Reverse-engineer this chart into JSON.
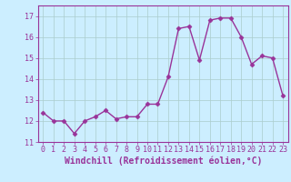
{
  "x": [
    0,
    1,
    2,
    3,
    4,
    5,
    6,
    7,
    8,
    9,
    10,
    11,
    12,
    13,
    14,
    15,
    16,
    17,
    18,
    19,
    20,
    21,
    22,
    23
  ],
  "y": [
    12.4,
    12.0,
    12.0,
    11.4,
    12.0,
    12.2,
    12.5,
    12.1,
    12.2,
    12.2,
    12.8,
    12.8,
    14.1,
    16.4,
    16.5,
    14.9,
    16.8,
    16.9,
    16.9,
    16.0,
    14.7,
    15.1,
    15.0,
    13.2
  ],
  "line_color": "#993399",
  "marker": "D",
  "marker_size": 2.5,
  "bg_color": "#cceeff",
  "xlabel": "Windchill (Refroidissement éolien,°C)",
  "ylim": [
    11,
    17.5
  ],
  "xlim": [
    -0.5,
    23.5
  ],
  "yticks": [
    11,
    12,
    13,
    14,
    15,
    16,
    17
  ],
  "xticks": [
    0,
    1,
    2,
    3,
    4,
    5,
    6,
    7,
    8,
    9,
    10,
    11,
    12,
    13,
    14,
    15,
    16,
    17,
    18,
    19,
    20,
    21,
    22,
    23
  ],
  "grid_color": "#aacccc",
  "xlabel_color": "#993399",
  "xlabel_fontsize": 7.0,
  "tick_color": "#993399",
  "tick_fontsize": 6.0,
  "linewidth": 1.0
}
